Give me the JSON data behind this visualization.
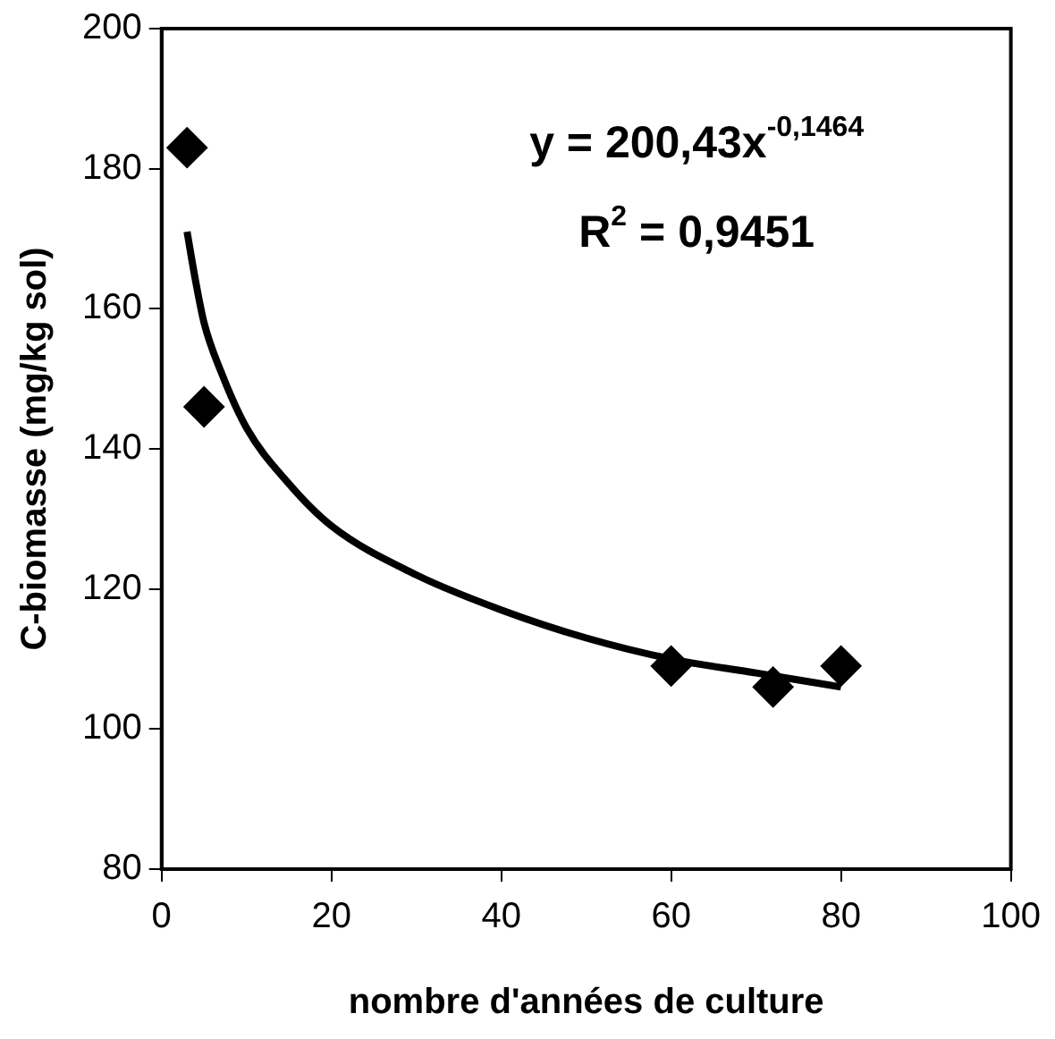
{
  "chart_data": {
    "type": "scatter",
    "xlabel": "nombre d'années de culture",
    "ylabel": "C-biomasse (mg/kg sol)",
    "xlim": [
      0,
      100
    ],
    "xticks": [
      0,
      20,
      40,
      60,
      80,
      100
    ],
    "ylim": [
      80,
      200
    ],
    "yticks": [
      80,
      100,
      120,
      140,
      160,
      180,
      200
    ],
    "grid": false,
    "legend": false,
    "marker": "diamond",
    "series": [
      {
        "type": "scatter",
        "color": "#000000",
        "x": [
          3,
          5,
          60,
          72,
          80
        ],
        "values": [
          183,
          146,
          109,
          106,
          109
        ]
      },
      {
        "type": "line",
        "color": "#000000",
        "marker": "none",
        "line_style": "solid",
        "x": [
          3,
          4,
          5,
          7,
          10,
          15,
          20,
          30,
          40,
          50,
          60,
          70,
          80
        ],
        "values": [
          171,
          164,
          158,
          151,
          143,
          135,
          129,
          122,
          117,
          113,
          110,
          108,
          106
        ]
      }
    ],
    "annotations": [
      "y = 200,43x$^{-0,1464}$",
      "R$^{2}$ = 0,9451"
    ]
  }
}
